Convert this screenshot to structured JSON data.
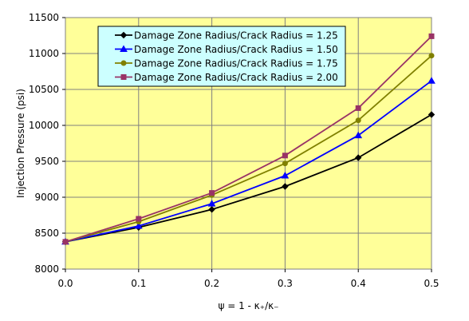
{
  "chart_data": {
    "type": "line",
    "xlabel": "ψ = 1 - κ₊/κ₋",
    "ylabel": "Injection Pressure (psi)",
    "xlim": [
      0.0,
      0.5
    ],
    "ylim": [
      8000,
      11500
    ],
    "xticks": [
      0.0,
      0.1,
      0.2,
      0.3,
      0.4,
      0.5
    ],
    "xtick_labels": [
      "0.0",
      "0.1",
      "0.2",
      "0.3",
      "0.4",
      "0.5"
    ],
    "yticks": [
      8000,
      8500,
      9000,
      9500,
      10000,
      10500,
      11000,
      11500
    ],
    "ytick_labels": [
      "8000",
      "8500",
      "9000",
      "9500",
      "10000",
      "10500",
      "11000",
      "11500"
    ],
    "grid": true,
    "plot_background": "#ffff99",
    "legend_position": "top-center",
    "legend_background": "#ccffff",
    "x": [
      0.0,
      0.1,
      0.2,
      0.3,
      0.4,
      0.5
    ],
    "series": [
      {
        "name": "Damage Zone Radius/Crack Radius = 1.25",
        "color": "#000000",
        "marker": "diamond",
        "values": [
          8380,
          8580,
          8830,
          9150,
          9550,
          10150
        ]
      },
      {
        "name": "Damage Zone Radius/Crack Radius = 1.50",
        "color": "#0000ff",
        "marker": "triangle",
        "values": [
          8380,
          8600,
          8910,
          9300,
          9860,
          10620
        ]
      },
      {
        "name": "Damage Zone Radius/Crack Radius = 1.75",
        "color": "#808000",
        "marker": "circle",
        "values": [
          8380,
          8660,
          9030,
          9470,
          10070,
          10970
        ]
      },
      {
        "name": "Damage Zone Radius/Crack Radius = 2.00",
        "color": "#993366",
        "marker": "square",
        "values": [
          8380,
          8700,
          9060,
          9580,
          10240,
          11240
        ]
      }
    ]
  }
}
